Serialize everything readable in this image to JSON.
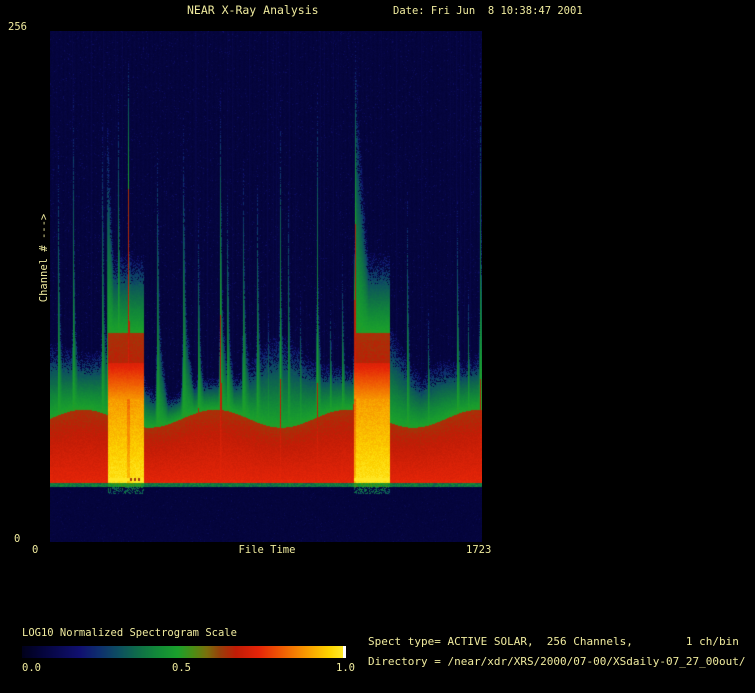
{
  "window": {
    "background": "#000000",
    "text_color": "#f0eb9e"
  },
  "header": {
    "title": "NEAR X-Ray Analysis",
    "date_label": "Date: Fri Jun  8 10:38:47 2001"
  },
  "plot": {
    "x_axis": {
      "label": "File Time",
      "min_label": "0",
      "max_label": "1723"
    },
    "y_axis": {
      "label": "Channel # --->",
      "min_label": "0",
      "max_label": "256"
    }
  },
  "colorbar": {
    "title": "LOG10 Normalized Spectrogram Scale",
    "tick_0": "0.0",
    "tick_05": "0.5",
    "tick_1": "1.0",
    "end_cap_color": "#ffffff"
  },
  "footer": {
    "spect_line": "Spect type= ACTIVE SOLAR,  256 Channels,        1 ch/bin",
    "directory_line": "Directory = /near/xdr/XRS/2000/07-00/XSdaily-07_27_00out/"
  },
  "chart_data": {
    "type": "heatmap",
    "title": "NEAR X-Ray Analysis",
    "xlabel": "File Time",
    "ylabel": "Channel #",
    "xlim": [
      0,
      1723
    ],
    "ylim": [
      0,
      256
    ],
    "scale_label": "LOG10 Normalized Spectrogram Scale",
    "scale_range": [
      0.0,
      1.0
    ],
    "noise_floor_channel": 30,
    "ambient": {
      "green_top_channel": 88,
      "red_top_channel": 62
    },
    "flares": [
      {
        "t": 32,
        "peak_channel": 204,
        "decay": 3
      },
      {
        "t": 92,
        "peak_channel": 238,
        "decay": 2
      },
      {
        "t": 208,
        "peak_channel": 222,
        "decay": 3
      },
      {
        "t": 228,
        "peak_channel": 222,
        "decay": 12
      },
      {
        "t": 272,
        "peak_channel": 235,
        "decay": 2.5
      },
      {
        "t": 312,
        "peak_channel": 255,
        "decay": 1.6,
        "red_core_channel": 183
      },
      {
        "t": 360,
        "peak_channel": 120,
        "decay": 8
      },
      {
        "t": 428,
        "peak_channel": 219,
        "decay": 3
      },
      {
        "t": 532,
        "peak_channel": 230,
        "decay": 3.5
      },
      {
        "t": 592,
        "peak_channel": 180,
        "decay": 3,
        "red_core_channel": 70
      },
      {
        "t": 680,
        "peak_channel": 245,
        "decay": 2.5,
        "red_core_channel": 121
      },
      {
        "t": 708,
        "peak_channel": 196,
        "decay": 3
      },
      {
        "t": 771,
        "peak_channel": 204,
        "decay": 3.5
      },
      {
        "t": 827,
        "peak_channel": 199,
        "decay": 3.2
      },
      {
        "t": 871,
        "peak_channel": 121,
        "decay": 4
      },
      {
        "t": 919,
        "peak_channel": 237,
        "decay": 1.8,
        "red_core_channel": 86
      },
      {
        "t": 951,
        "peak_channel": 189,
        "decay": 3
      },
      {
        "t": 999,
        "peak_channel": 125,
        "decay": 5
      },
      {
        "t": 1067,
        "peak_channel": 249,
        "decay": 1.5,
        "red_core_channel": 83
      },
      {
        "t": 1119,
        "peak_channel": 125,
        "decay": 4
      },
      {
        "t": 1167,
        "peak_channel": 146,
        "decay": 4
      },
      {
        "t": 1218,
        "peak_channel": 255,
        "decay": 20,
        "red_core_channel": 191
      },
      {
        "t": 1427,
        "peak_channel": 179,
        "decay": 3,
        "faint": true
      },
      {
        "t": 1511,
        "peak_channel": 121,
        "decay": 4,
        "faint": true
      },
      {
        "t": 1627,
        "peak_channel": 174,
        "decay": 3,
        "faint": true
      },
      {
        "t": 1671,
        "peak_channel": 131,
        "decay": 3,
        "faint": true
      },
      {
        "t": 1719,
        "peak_channel": 251,
        "decay": 2,
        "red_core_channel": 82
      }
    ],
    "saturated_blocks": [
      {
        "t0": 228,
        "t1": 372,
        "yellow_top_channel": 72,
        "orange_top_channel": 90,
        "dashes": true
      },
      {
        "t0": 1212,
        "t1": 1359,
        "yellow_top_channel": 72,
        "orange_top_channel": 90,
        "dashes": false
      }
    ],
    "palette_stops": [
      [
        0.0,
        "#01011a"
      ],
      [
        0.06,
        "#04043a"
      ],
      [
        0.12,
        "#0a0a55"
      ],
      [
        0.18,
        "#101070"
      ],
      [
        0.24,
        "#0e2f6e"
      ],
      [
        0.3,
        "#0d4f60"
      ],
      [
        0.36,
        "#0f6e48"
      ],
      [
        0.42,
        "#128a38"
      ],
      [
        0.48,
        "#1aa02c"
      ],
      [
        0.53,
        "#4d8c14"
      ],
      [
        0.57,
        "#7a700c"
      ],
      [
        0.61,
        "#96400a"
      ],
      [
        0.66,
        "#c01c06"
      ],
      [
        0.73,
        "#e42408"
      ],
      [
        0.8,
        "#ef5a04"
      ],
      [
        0.88,
        "#f89c00"
      ],
      [
        0.95,
        "#fdd400"
      ],
      [
        1.0,
        "#ffee32"
      ]
    ]
  }
}
